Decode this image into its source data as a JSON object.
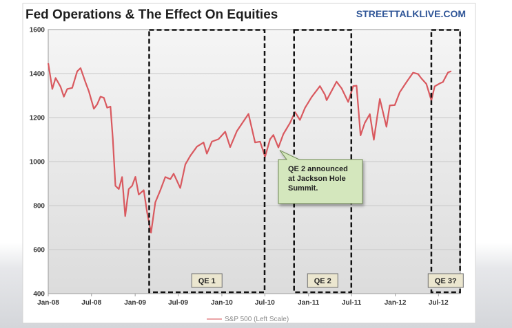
{
  "brand": "STREETTALKLIVE.COM",
  "chart_data": {
    "type": "line",
    "title": "Fed Operations & The Effect On Equities",
    "xlabel": "",
    "ylabel": "",
    "ylim": [
      400,
      1600
    ],
    "yticks": [
      400,
      600,
      800,
      1000,
      1200,
      1400,
      1600
    ],
    "xlim": [
      "2008-01-01",
      "2012-10-01"
    ],
    "xticks": [
      {
        "date": "2008-01-01",
        "label": "Jan-08"
      },
      {
        "date": "2008-07-01",
        "label": "Jul-08"
      },
      {
        "date": "2009-01-01",
        "label": "Jan-09"
      },
      {
        "date": "2009-07-01",
        "label": "Jul-09"
      },
      {
        "date": "2010-01-01",
        "label": "Jan-10"
      },
      {
        "date": "2010-07-01",
        "label": "Jul-10"
      },
      {
        "date": "2011-01-01",
        "label": "Jan-11"
      },
      {
        "date": "2011-07-01",
        "label": "Jul-11"
      },
      {
        "date": "2012-01-01",
        "label": "Jan-12"
      },
      {
        "date": "2012-07-01",
        "label": "Jul-12"
      }
    ],
    "grid": true,
    "legend": {
      "position": "bottom"
    },
    "series": [
      {
        "name": "S&P 500 (Left Scale)",
        "color": "#d9595f",
        "points": [
          [
            "2008-01-01",
            1447
          ],
          [
            "2008-01-18",
            1330
          ],
          [
            "2008-02-01",
            1380
          ],
          [
            "2008-02-22",
            1340
          ],
          [
            "2008-03-07",
            1295
          ],
          [
            "2008-03-21",
            1330
          ],
          [
            "2008-04-11",
            1335
          ],
          [
            "2008-05-02",
            1410
          ],
          [
            "2008-05-16",
            1425
          ],
          [
            "2008-06-06",
            1360
          ],
          [
            "2008-06-20",
            1320
          ],
          [
            "2008-07-11",
            1240
          ],
          [
            "2008-07-25",
            1260
          ],
          [
            "2008-08-08",
            1295
          ],
          [
            "2008-08-22",
            1290
          ],
          [
            "2008-09-05",
            1245
          ],
          [
            "2008-09-19",
            1250
          ],
          [
            "2008-09-29",
            1105
          ],
          [
            "2008-10-10",
            890
          ],
          [
            "2008-10-24",
            875
          ],
          [
            "2008-11-07",
            930
          ],
          [
            "2008-11-20",
            752
          ],
          [
            "2008-12-05",
            875
          ],
          [
            "2008-12-19",
            890
          ],
          [
            "2009-01-02",
            931
          ],
          [
            "2009-01-16",
            850
          ],
          [
            "2009-02-06",
            870
          ],
          [
            "2009-02-20",
            770
          ],
          [
            "2009-03-09",
            677
          ],
          [
            "2009-03-27",
            815
          ],
          [
            "2009-04-17",
            870
          ],
          [
            "2009-05-08",
            930
          ],
          [
            "2009-05-29",
            920
          ],
          [
            "2009-06-12",
            945
          ],
          [
            "2009-07-10",
            880
          ],
          [
            "2009-07-31",
            987
          ],
          [
            "2009-08-21",
            1026
          ],
          [
            "2009-09-18",
            1068
          ],
          [
            "2009-10-16",
            1087
          ],
          [
            "2009-10-30",
            1036
          ],
          [
            "2009-11-20",
            1091
          ],
          [
            "2009-12-18",
            1102
          ],
          [
            "2010-01-15",
            1136
          ],
          [
            "2010-02-05",
            1066
          ],
          [
            "2010-03-05",
            1138
          ],
          [
            "2010-04-23",
            1217
          ],
          [
            "2010-05-21",
            1087
          ],
          [
            "2010-06-11",
            1091
          ],
          [
            "2010-07-02",
            1022
          ],
          [
            "2010-07-23",
            1102
          ],
          [
            "2010-08-06",
            1121
          ],
          [
            "2010-08-27",
            1064
          ],
          [
            "2010-09-17",
            1125
          ],
          [
            "2010-10-15",
            1176
          ],
          [
            "2010-11-05",
            1225
          ],
          [
            "2010-11-26",
            1189
          ],
          [
            "2010-12-17",
            1244
          ],
          [
            "2011-01-14",
            1293
          ],
          [
            "2011-02-18",
            1343
          ],
          [
            "2011-03-11",
            1304
          ],
          [
            "2011-03-18",
            1279
          ],
          [
            "2011-04-29",
            1363
          ],
          [
            "2011-05-20",
            1333
          ],
          [
            "2011-06-17",
            1271
          ],
          [
            "2011-07-08",
            1343
          ],
          [
            "2011-07-22",
            1345
          ],
          [
            "2011-08-08",
            1119
          ],
          [
            "2011-08-26",
            1176
          ],
          [
            "2011-09-16",
            1216
          ],
          [
            "2011-10-03",
            1099
          ],
          [
            "2011-10-28",
            1285
          ],
          [
            "2011-11-25",
            1158
          ],
          [
            "2011-12-09",
            1255
          ],
          [
            "2011-12-30",
            1257
          ],
          [
            "2012-01-20",
            1315
          ],
          [
            "2012-02-17",
            1361
          ],
          [
            "2012-03-16",
            1404
          ],
          [
            "2012-04-06",
            1398
          ],
          [
            "2012-04-20",
            1378
          ],
          [
            "2012-05-11",
            1353
          ],
          [
            "2012-06-01",
            1278
          ],
          [
            "2012-06-15",
            1342
          ],
          [
            "2012-07-06",
            1355
          ],
          [
            "2012-07-20",
            1362
          ],
          [
            "2012-08-10",
            1405
          ],
          [
            "2012-08-24",
            1411
          ]
        ]
      }
    ],
    "regions": [
      {
        "label": "QE 1",
        "start": "2009-03-01",
        "end": "2010-06-30"
      },
      {
        "label": "QE 2",
        "start": "2010-11-01",
        "end": "2011-06-30"
      },
      {
        "label": "QE 3?",
        "start": "2012-06-01",
        "end": "2012-09-30"
      }
    ],
    "annotations": [
      {
        "lines": [
          "QE 2 announced",
          "at Jackson Hole",
          "Summit."
        ],
        "date": "2010-08-27",
        "value": 1064
      }
    ]
  }
}
